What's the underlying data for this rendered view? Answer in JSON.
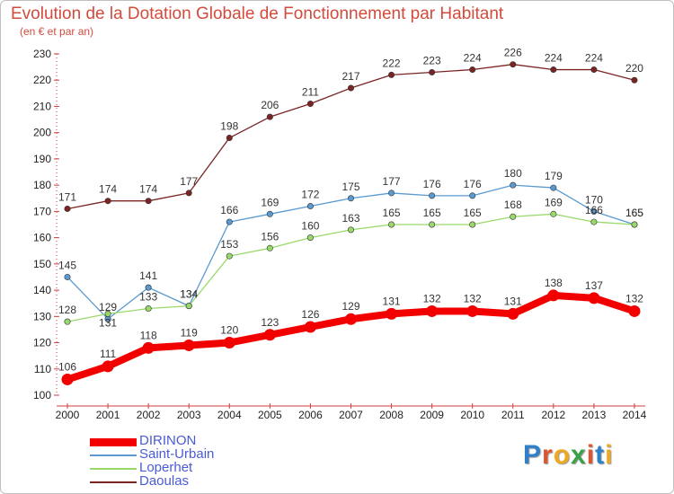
{
  "title": "Evolution de la Dotation Globale de Fonctionnement par Habitant",
  "subtitle": "(en € et par an)",
  "logo": {
    "text": "Proxiti",
    "colors": [
      "#2f80c8",
      "#e0542e",
      "#f0a81e",
      "#3aa14a",
      "#e0542e",
      "#2f80c8",
      "#f0a81e"
    ]
  },
  "chart_data": {
    "type": "line",
    "title": "Evolution de la Dotation Globale de Fonctionnement par Habitant",
    "ylabel": "(en € et par an)",
    "xlabel": "",
    "x": [
      "2000",
      "2001",
      "2002",
      "2003",
      "2004",
      "2005",
      "2006",
      "2007",
      "2008",
      "2009",
      "2010",
      "2011",
      "2012",
      "2013",
      "2014"
    ],
    "ylim": [
      100,
      230
    ],
    "yticks": [
      "100",
      "110",
      "120",
      "130",
      "140",
      "150",
      "160",
      "170",
      "180",
      "190",
      "200",
      "210",
      "220",
      "230"
    ],
    "series": [
      {
        "name": "Daoulas",
        "color": "#7a2424",
        "values": [
          171,
          174,
          174,
          177,
          198,
          206,
          211,
          217,
          222,
          223,
          224,
          226,
          224,
          224,
          220
        ],
        "labels": [
          "171",
          "174",
          "174",
          "177",
          "198",
          "206",
          "211",
          "217",
          "222",
          "223",
          "224",
          "226",
          "224",
          "224",
          "220"
        ]
      },
      {
        "name": "Saint-Urbain",
        "color": "#5a9ad0",
        "values": [
          145,
          129,
          141,
          134,
          166,
          169,
          172,
          175,
          177,
          176,
          176,
          180,
          179,
          170,
          165
        ],
        "labels": [
          "145",
          "129",
          "141",
          "134",
          "166",
          "169",
          "172",
          "175",
          "177",
          "176",
          "176",
          "180",
          "179",
          "170",
          "165"
        ]
      },
      {
        "name": "Loperhet",
        "color": "#99d96b",
        "values": [
          128,
          131,
          133,
          134,
          153,
          156,
          160,
          163,
          165,
          165,
          165,
          168,
          169,
          166,
          165
        ],
        "labels": [
          "128",
          "131",
          "133",
          "134",
          "153",
          "156",
          "160",
          "163",
          "165",
          "165",
          "165",
          "168",
          "169",
          "166",
          "165"
        ]
      },
      {
        "name": "DIRINON",
        "color": "#f20000",
        "values": [
          106,
          111,
          118,
          119,
          120,
          123,
          126,
          129,
          131,
          132,
          132,
          131,
          138,
          137,
          132
        ],
        "labels": [
          "106",
          "111",
          "118",
          "119",
          "120",
          "123",
          "126",
          "129",
          "131",
          "132",
          "132",
          "131",
          "138",
          "137",
          "132"
        ]
      }
    ],
    "legend": [
      "DIRINON",
      "Saint-Urbain",
      "Loperhet",
      "Daoulas"
    ],
    "legend_position": "bottom-left",
    "grid": false
  }
}
